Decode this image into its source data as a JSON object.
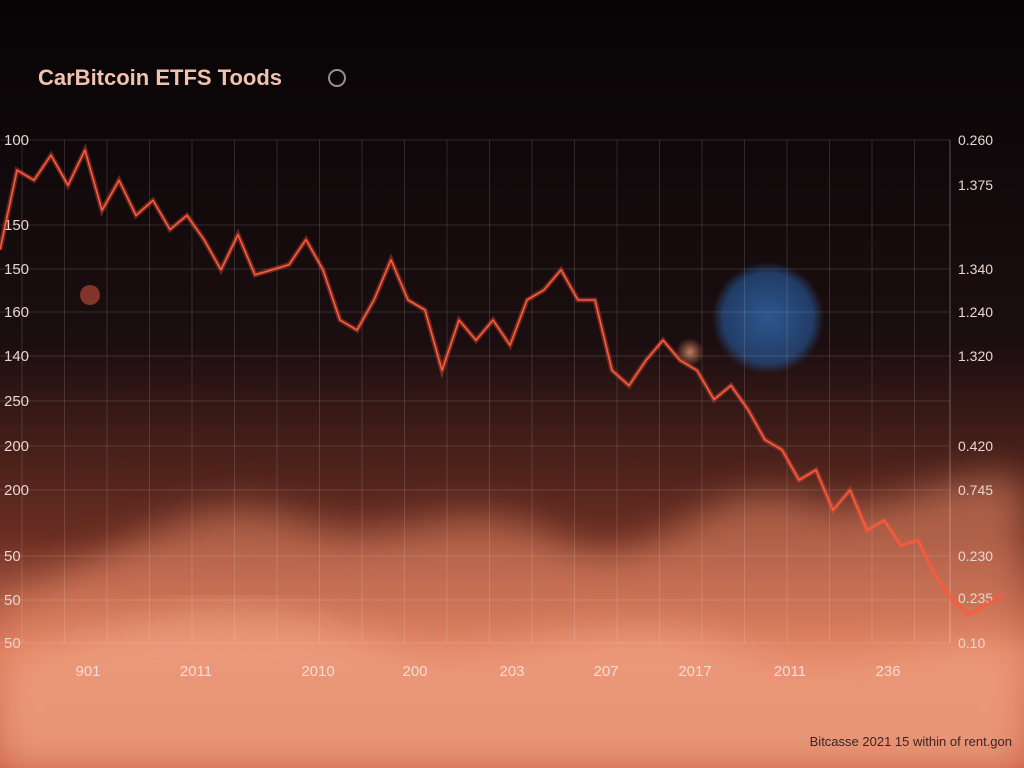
{
  "chart_data": {
    "type": "line",
    "title": "CarBitcoin ETFS Toods",
    "footer": "Bitcasse 2021 15 within of rent.gon",
    "y_labels": [
      "100",
      "150",
      "150",
      "160",
      "140",
      "250",
      "200",
      "200",
      "50",
      "50",
      "50"
    ],
    "y2_labels": [
      "0.260",
      "1.375",
      "1.340",
      "1.240",
      "1.320",
      "0.420",
      "0.745",
      "0.230",
      "0.235",
      "0.10"
    ],
    "x_labels": [
      "901",
      "2011",
      "2010",
      "200",
      "203",
      "207",
      "2017",
      "2011",
      "236"
    ],
    "ylim": [
      50,
      100
    ],
    "color": "#ff5a3c",
    "values": [
      89.1,
      97.0,
      96.0,
      98.5,
      95.5,
      99.0,
      93.0,
      96.0,
      92.5,
      94.0,
      91.1,
      92.5,
      90.1,
      87.1,
      90.6,
      86.6,
      87.1,
      87.6,
      90.1,
      87.1,
      82.1,
      81.1,
      84.1,
      88.1,
      84.1,
      83.1,
      77.1,
      82.1,
      80.1,
      82.1,
      79.6,
      84.1,
      85.1,
      87.1,
      84.1,
      84.1,
      77.1,
      75.6,
      78.1,
      80.1,
      78.1,
      77.1,
      74.2,
      75.6,
      73.2,
      70.2,
      69.2,
      66.2,
      67.2,
      63.2,
      65.2,
      61.2,
      62.2,
      59.7,
      60.2,
      56.8,
      54.3,
      52.8,
      53.8,
      54.8
    ]
  }
}
